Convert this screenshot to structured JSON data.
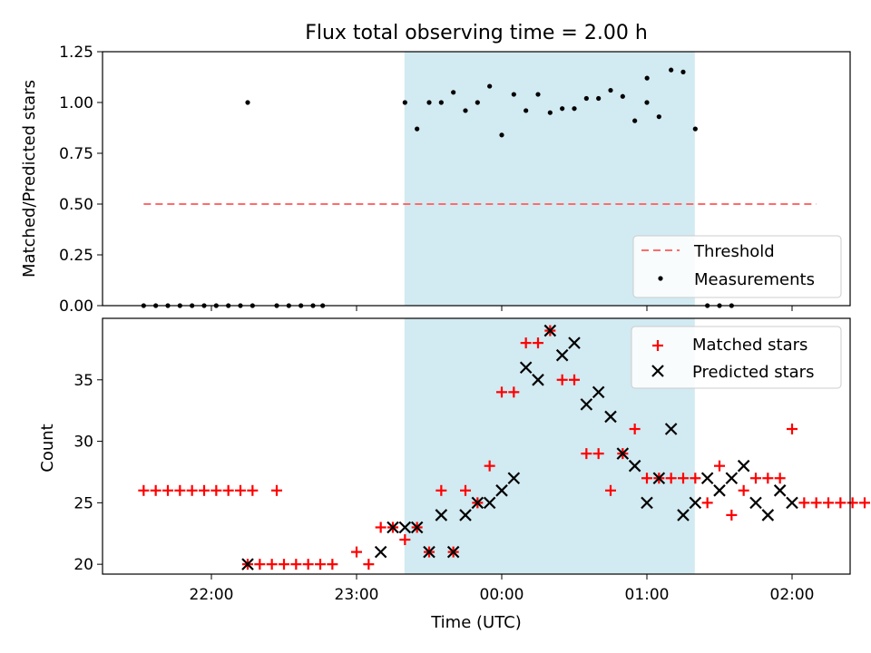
{
  "figure": {
    "title": "Flux total observing time = 2.00 h",
    "xlabel": "Time (UTC)",
    "x_tick_labels": [
      "22:00",
      "23:00",
      "00:00",
      "01:00",
      "02:00"
    ],
    "x_tick_hours": [
      22,
      23,
      24,
      25,
      26
    ],
    "xlim_hours": [
      21.25,
      26.4
    ],
    "shaded_region_hours": [
      23.33,
      25.33
    ],
    "colors": {
      "shade": "#add8e6",
      "threshold": "#ff6b6b",
      "matched": "#ff0000",
      "predicted": "#000000",
      "measurement": "#000000"
    }
  },
  "chart_data": [
    {
      "type": "scatter",
      "ylabel": "Matched/Predicted stars",
      "ylim": [
        0,
        1.25
      ],
      "y_tick_labels": [
        "0.00",
        "0.25",
        "0.50",
        "0.75",
        "1.00",
        "1.25"
      ],
      "y_ticks": [
        0,
        0.25,
        0.5,
        0.75,
        1.0,
        1.25
      ],
      "legend_position": "lower right",
      "legend": {
        "threshold": "Threshold",
        "measurements": "Measurements"
      },
      "threshold": {
        "name": "Threshold",
        "value": 0.5,
        "x_range": [
          "21:32",
          "02:10"
        ]
      },
      "series": [
        {
          "name": "Measurements",
          "points": [
            [
              "21:32",
              0.0
            ],
            [
              "21:37",
              0.0
            ],
            [
              "21:42",
              0.0
            ],
            [
              "21:47",
              0.0
            ],
            [
              "21:52",
              0.0
            ],
            [
              "21:57",
              0.0
            ],
            [
              "22:02",
              0.0
            ],
            [
              "22:07",
              0.0
            ],
            [
              "22:12",
              0.0
            ],
            [
              "22:17",
              0.0
            ],
            [
              "22:27",
              0.0
            ],
            [
              "22:32",
              0.0
            ],
            [
              "22:37",
              0.0
            ],
            [
              "22:42",
              0.0
            ],
            [
              "22:15",
              1.0
            ],
            [
              "22:46",
              0.0
            ],
            [
              "23:20",
              1.0
            ],
            [
              "23:25",
              0.87
            ],
            [
              "23:30",
              1.0
            ],
            [
              "23:35",
              1.0
            ],
            [
              "23:40",
              1.05
            ],
            [
              "23:45",
              0.96
            ],
            [
              "23:50",
              1.0
            ],
            [
              "23:55",
              1.08
            ],
            [
              "00:00",
              0.84
            ],
            [
              "00:05",
              1.04
            ],
            [
              "00:10",
              0.96
            ],
            [
              "00:15",
              1.04
            ],
            [
              "00:20",
              0.95
            ],
            [
              "00:25",
              0.97
            ],
            [
              "00:30",
              0.97
            ],
            [
              "00:35",
              1.02
            ],
            [
              "00:40",
              1.02
            ],
            [
              "00:45",
              1.06
            ],
            [
              "00:50",
              1.03
            ],
            [
              "00:55",
              0.91
            ],
            [
              "01:00",
              1.0
            ],
            [
              "01:05",
              0.93
            ],
            [
              "01:10",
              1.16
            ],
            [
              "01:15",
              1.15
            ],
            [
              "01:20",
              0.87
            ],
            [
              "01:25",
              0.0
            ],
            [
              "01:30",
              0.0
            ],
            [
              "01:35",
              0.0
            ],
            [
              "01:00+",
              1.12
            ]
          ]
        }
      ]
    },
    {
      "type": "scatter",
      "ylabel": "Count",
      "ylim": [
        19.2,
        40
      ],
      "y_tick_labels": [
        "20",
        "25",
        "30",
        "35"
      ],
      "y_ticks": [
        20,
        25,
        30,
        35
      ],
      "legend_position": "upper right",
      "legend": {
        "matched": "Matched stars",
        "predicted": "Predicted stars"
      },
      "series": [
        {
          "name": "Matched stars",
          "points": [
            [
              "21:32",
              26
            ],
            [
              "21:37",
              26
            ],
            [
              "21:42",
              26
            ],
            [
              "21:47",
              26
            ],
            [
              "21:52",
              26
            ],
            [
              "21:57",
              26
            ],
            [
              "22:02",
              26
            ],
            [
              "22:07",
              26
            ],
            [
              "22:12",
              26
            ],
            [
              "22:17",
              26
            ],
            [
              "22:27",
              26
            ],
            [
              "22:15",
              20
            ],
            [
              "22:20",
              20
            ],
            [
              "22:25",
              20
            ],
            [
              "22:30",
              20
            ],
            [
              "22:35",
              20
            ],
            [
              "22:40",
              20
            ],
            [
              "22:45",
              20
            ],
            [
              "22:50",
              20
            ],
            [
              "23:00",
              21
            ],
            [
              "23:05",
              20
            ],
            [
              "23:10",
              23
            ],
            [
              "23:15",
              23
            ],
            [
              "23:20",
              22
            ],
            [
              "23:25",
              23
            ],
            [
              "23:30",
              21
            ],
            [
              "23:35",
              26
            ],
            [
              "23:40",
              21
            ],
            [
              "23:45",
              26
            ],
            [
              "23:50",
              25
            ],
            [
              "23:55",
              28
            ],
            [
              "00:00",
              34
            ],
            [
              "00:05",
              34
            ],
            [
              "00:10",
              38
            ],
            [
              "00:15",
              38
            ],
            [
              "00:20",
              39
            ],
            [
              "00:25",
              35
            ],
            [
              "00:30",
              35
            ],
            [
              "00:35",
              29
            ],
            [
              "00:40",
              29
            ],
            [
              "00:45",
              26
            ],
            [
              "00:50",
              29
            ],
            [
              "00:55",
              31
            ],
            [
              "01:00",
              27
            ],
            [
              "01:05",
              27
            ],
            [
              "01:10",
              27
            ],
            [
              "01:15",
              27
            ],
            [
              "01:20",
              27
            ],
            [
              "01:25",
              25
            ],
            [
              "01:30",
              28
            ],
            [
              "01:35",
              24
            ],
            [
              "01:40",
              26
            ],
            [
              "01:45",
              27
            ],
            [
              "01:50",
              27
            ],
            [
              "01:55",
              27
            ],
            [
              "02:00",
              31
            ],
            [
              "02:05",
              25
            ],
            [
              "02:10",
              25
            ],
            [
              "02:15",
              25
            ],
            [
              "02:20",
              25
            ],
            [
              "02:25",
              25
            ],
            [
              "02:30",
              25
            ]
          ]
        },
        {
          "name": "Predicted stars",
          "points": [
            [
              "22:15",
              20
            ],
            [
              "23:10",
              21
            ],
            [
              "23:15",
              23
            ],
            [
              "23:20",
              23
            ],
            [
              "23:25",
              23
            ],
            [
              "23:30",
              21
            ],
            [
              "23:35",
              24
            ],
            [
              "23:40",
              21
            ],
            [
              "23:45",
              24
            ],
            [
              "23:50",
              25
            ],
            [
              "23:55",
              25
            ],
            [
              "00:00",
              26
            ],
            [
              "00:05",
              27
            ],
            [
              "00:10",
              36
            ],
            [
              "00:15",
              35
            ],
            [
              "00:20",
              39
            ],
            [
              "00:25",
              37
            ],
            [
              "00:30",
              38
            ],
            [
              "00:35",
              33
            ],
            [
              "00:40",
              34
            ],
            [
              "00:45",
              32
            ],
            [
              "00:50",
              29
            ],
            [
              "00:55",
              28
            ],
            [
              "01:00",
              25
            ],
            [
              "01:05",
              27
            ],
            [
              "01:10",
              31
            ],
            [
              "01:15",
              24
            ],
            [
              "01:20",
              25
            ],
            [
              "01:25",
              27
            ],
            [
              "01:30",
              26
            ],
            [
              "01:35",
              27
            ],
            [
              "01:40",
              28
            ],
            [
              "01:45",
              25
            ],
            [
              "01:50",
              24
            ],
            [
              "01:55",
              26
            ],
            [
              "02:00",
              25
            ]
          ]
        }
      ]
    }
  ]
}
